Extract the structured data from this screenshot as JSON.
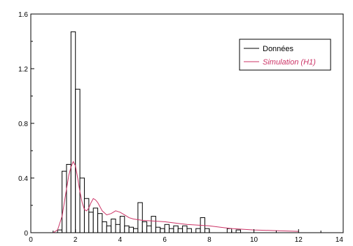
{
  "chart_data": {
    "type": "bar",
    "title": "",
    "xlabel": "",
    "ylabel": "",
    "xlim": [
      0,
      14
    ],
    "ylim": [
      0,
      1.6
    ],
    "x_ticks": [
      "0",
      "2",
      "4",
      "6",
      "8",
      "10",
      "12",
      "14"
    ],
    "y_ticks": [
      "0",
      "0.4",
      "0.8",
      "1.2",
      "1.6"
    ],
    "grid": false,
    "legend_position": "top-right",
    "series": [
      {
        "name": "Données",
        "kind": "histogram",
        "color": "#000000",
        "bin_width": 0.2,
        "bins": [
          {
            "x0": 1.2,
            "value": 0.02
          },
          {
            "x0": 1.4,
            "value": 0.45
          },
          {
            "x0": 1.6,
            "value": 0.5
          },
          {
            "x0": 1.8,
            "value": 1.47
          },
          {
            "x0": 2.0,
            "value": 1.05
          },
          {
            "x0": 2.2,
            "value": 0.4
          },
          {
            "x0": 2.4,
            "value": 0.25
          },
          {
            "x0": 2.6,
            "value": 0.15
          },
          {
            "x0": 2.8,
            "value": 0.18
          },
          {
            "x0": 3.0,
            "value": 0.14
          },
          {
            "x0": 3.2,
            "value": 0.08
          },
          {
            "x0": 3.4,
            "value": 0.05
          },
          {
            "x0": 3.6,
            "value": 0.1
          },
          {
            "x0": 3.8,
            "value": 0.06
          },
          {
            "x0": 4.0,
            "value": 0.12
          },
          {
            "x0": 4.2,
            "value": 0.05
          },
          {
            "x0": 4.4,
            "value": 0.04
          },
          {
            "x0": 4.6,
            "value": 0.03
          },
          {
            "x0": 4.8,
            "value": 0.22
          },
          {
            "x0": 5.0,
            "value": 0.08
          },
          {
            "x0": 5.2,
            "value": 0.05
          },
          {
            "x0": 5.4,
            "value": 0.12
          },
          {
            "x0": 5.6,
            "value": 0.04
          },
          {
            "x0": 5.8,
            "value": 0.03
          },
          {
            "x0": 6.0,
            "value": 0.06
          },
          {
            "x0": 6.2,
            "value": 0.03
          },
          {
            "x0": 6.4,
            "value": 0.05
          },
          {
            "x0": 6.6,
            "value": 0.03
          },
          {
            "x0": 6.8,
            "value": 0.05
          },
          {
            "x0": 7.0,
            "value": 0.03
          },
          {
            "x0": 7.4,
            "value": 0.03
          },
          {
            "x0": 7.6,
            "value": 0.11
          },
          {
            "x0": 7.8,
            "value": 0.03
          },
          {
            "x0": 8.8,
            "value": 0.03
          },
          {
            "x0": 9.2,
            "value": 0.02
          }
        ]
      },
      {
        "name": "Simulation (H1)",
        "kind": "line",
        "color": "#cc3366",
        "x": [
          1.0,
          1.2,
          1.4,
          1.5,
          1.6,
          1.7,
          1.8,
          1.9,
          2.0,
          2.1,
          2.2,
          2.3,
          2.4,
          2.5,
          2.6,
          2.7,
          2.8,
          2.9,
          3.0,
          3.2,
          3.4,
          3.6,
          3.8,
          4.0,
          4.2,
          4.4,
          4.6,
          5.0,
          5.5,
          6.0,
          6.5,
          7.0,
          7.5,
          8.0,
          8.5,
          9.0,
          10.0,
          11.0,
          12.0
        ],
        "values": [
          0.0,
          0.02,
          0.12,
          0.22,
          0.32,
          0.42,
          0.48,
          0.52,
          0.49,
          0.4,
          0.3,
          0.22,
          0.17,
          0.16,
          0.18,
          0.22,
          0.25,
          0.24,
          0.22,
          0.16,
          0.13,
          0.14,
          0.16,
          0.15,
          0.13,
          0.11,
          0.1,
          0.09,
          0.085,
          0.08,
          0.07,
          0.06,
          0.055,
          0.05,
          0.04,
          0.03,
          0.02,
          0.015,
          0.01
        ]
      }
    ]
  }
}
